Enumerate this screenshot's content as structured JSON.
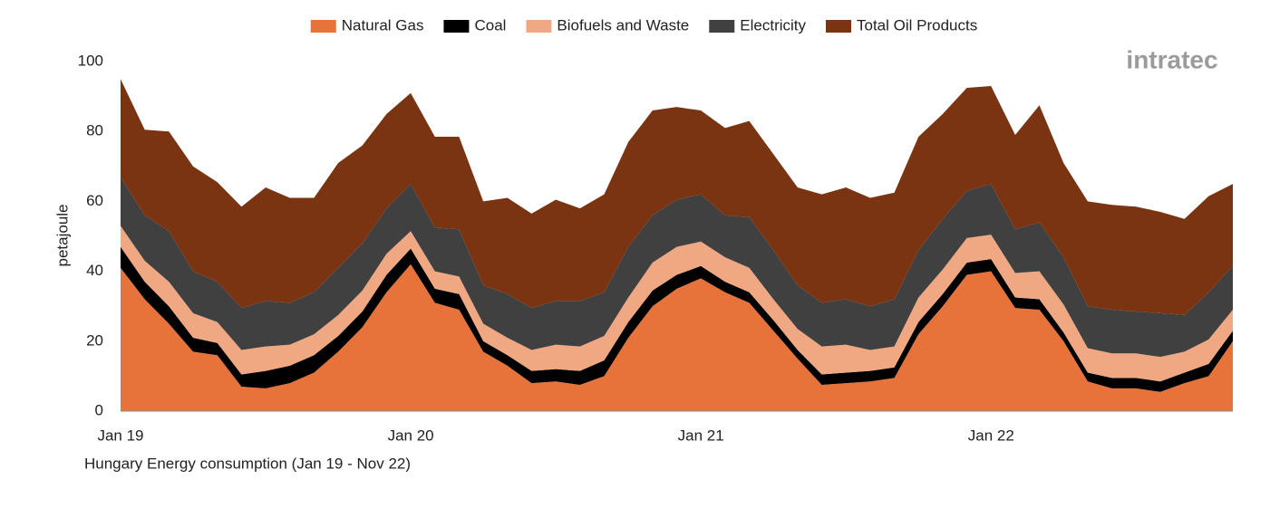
{
  "chart_data": {
    "type": "stacked_area",
    "title": "Hungary Energy consumption (Jan 19 - Nov 22)",
    "y_label": "petajoule",
    "categories": [
      "Jan 19",
      null,
      null,
      null,
      null,
      null,
      null,
      null,
      null,
      null,
      null,
      null,
      "Jan 20",
      null,
      null,
      null,
      null,
      null,
      null,
      null,
      null,
      null,
      null,
      null,
      "Jan 21",
      null,
      null,
      null,
      null,
      null,
      null,
      null,
      null,
      null,
      null,
      null,
      "Jan 22",
      null,
      null,
      null,
      null,
      null,
      null,
      null,
      null,
      null,
      null
    ],
    "ylim": [
      0,
      100
    ],
    "yticks": [
      0,
      20,
      40,
      60,
      80,
      100
    ],
    "grid": false,
    "legend": "top",
    "series": [
      {
        "name": "Natural Gas",
        "color": "#e8733a",
        "values": [
          41,
          32,
          25,
          17,
          16,
          7,
          6.5,
          8,
          11,
          17,
          24,
          34,
          42,
          31,
          29,
          17,
          13,
          8,
          8.5,
          7.5,
          10,
          21,
          30,
          35,
          38,
          34,
          31,
          23,
          15,
          7.5,
          8,
          8.5,
          9.5,
          22,
          30,
          39,
          40,
          29.5,
          29,
          20,
          8.5,
          6.5,
          6.5,
          5.5,
          8,
          10,
          20
        ]
      },
      {
        "name": "Coal",
        "color": "#000000",
        "values": [
          6,
          5,
          5,
          4,
          3.5,
          3.5,
          5,
          5,
          5,
          4.5,
          4.5,
          5,
          4.5,
          4,
          4.5,
          3,
          3,
          3.5,
          3.5,
          4,
          4.5,
          4.5,
          4.5,
          4,
          3.5,
          3,
          3,
          3,
          2.5,
          3,
          3,
          3,
          3,
          3.5,
          3.5,
          3.5,
          3.5,
          3,
          3,
          2.5,
          2.5,
          3,
          3,
          3,
          3,
          3.5,
          3
        ]
      },
      {
        "name": "Biofuels and Waste",
        "color": "#f0a882",
        "values": [
          6,
          6,
          7,
          7,
          6,
          7,
          7,
          6,
          6,
          6,
          6,
          6,
          5,
          5,
          5,
          5,
          5,
          6,
          7,
          7,
          7,
          7,
          8,
          8,
          7,
          7,
          7,
          6,
          6,
          8,
          8,
          6,
          6,
          7,
          7,
          7,
          7,
          7,
          8,
          8,
          7,
          7,
          7,
          7,
          6,
          7,
          6
        ]
      },
      {
        "name": "Electricity",
        "color": "#404040",
        "values": [
          14,
          13,
          14.5,
          12,
          11.5,
          12,
          13,
          12,
          12,
          13.5,
          13.5,
          13,
          13.5,
          12.5,
          13.5,
          11,
          12.5,
          12,
          12.5,
          13,
          12.5,
          14.5,
          13.5,
          13.5,
          13.5,
          12,
          14.5,
          14,
          12.5,
          12.5,
          13,
          12.5,
          13.5,
          13.5,
          14.5,
          13.5,
          14.5,
          12.5,
          14,
          13.5,
          12,
          12.5,
          12,
          12.5,
          10.5,
          13.5,
          12.5
        ]
      },
      {
        "name": "Total Oil Products",
        "color": "#7a3412",
        "values": [
          28,
          24.5,
          28.5,
          30,
          28.5,
          29,
          32.5,
          30,
          27,
          30,
          28,
          27,
          26,
          26,
          26.5,
          24,
          27.5,
          27,
          29,
          26.5,
          28,
          30,
          30,
          26.5,
          24,
          25,
          27.5,
          27.5,
          28,
          31,
          32,
          31,
          30.5,
          32.5,
          30,
          29.5,
          28,
          27,
          33.5,
          27,
          30,
          30,
          30,
          29,
          27.5,
          27.5,
          23.5
        ]
      }
    ]
  },
  "logo": "intratec"
}
